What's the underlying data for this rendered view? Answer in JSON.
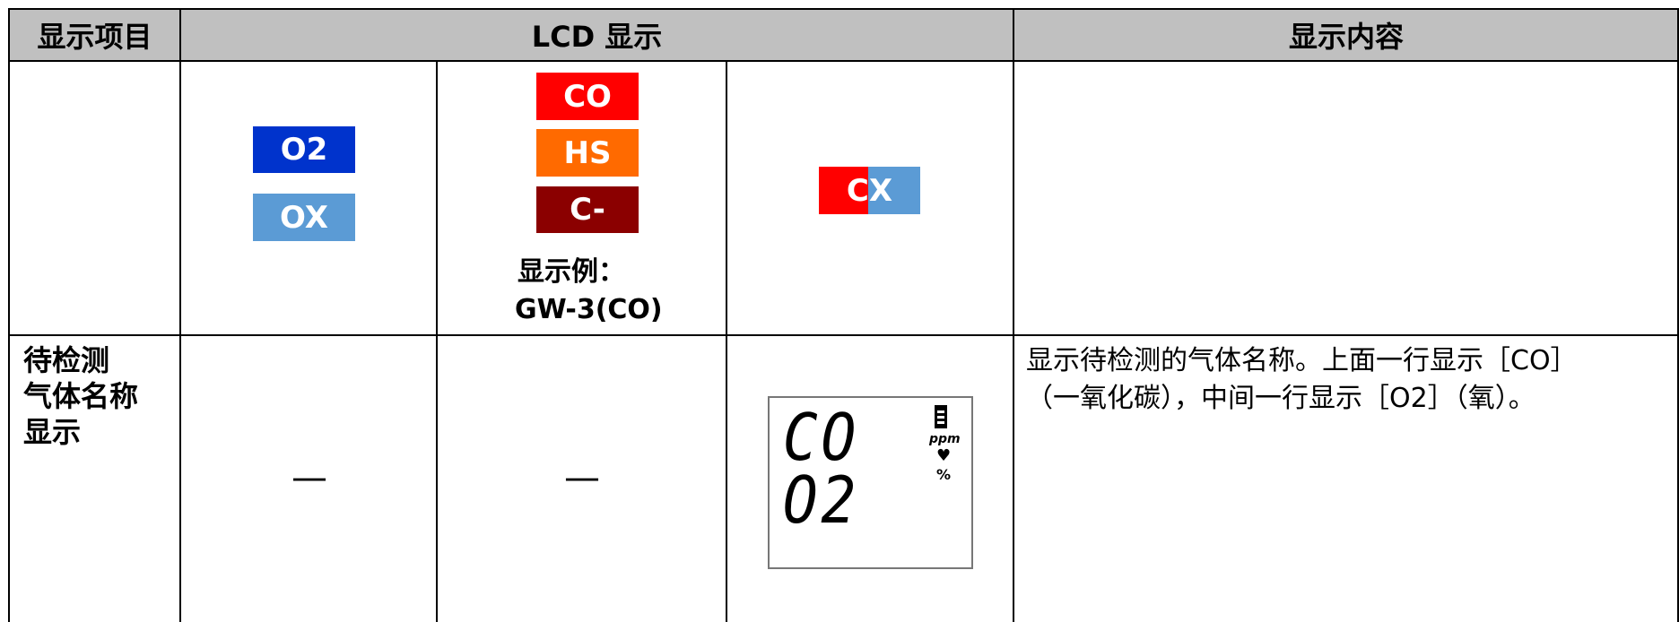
{
  "table": {
    "header": [
      "显示项目",
      "LCD 显示",
      "显示内容"
    ],
    "rows": [
      {
        "item": [],
        "lcd_col1": [
          "O2",
          "OX"
        ],
        "lcd_col2": [
          "CO",
          "HS",
          "C-"
        ],
        "lcd_col2_note": [
          "显示例：",
          "GW-3(CO)"
        ],
        "lcd_col3": "CX",
        "content": []
      },
      {
        "item": [
          "待检测",
          "气体名称",
          "显示"
        ],
        "lcd_col1": "—",
        "lcd_col2": "—",
        "lcd_col3": {
          "line1": "CO",
          "line2": "O2",
          "unit1": "ppm",
          "unit2": "%"
        },
        "content": [
          "显示待检测的气体名称。上面一行显示［CO］",
          "（一氧化碳），中间一行显示［O2］（氧）。"
        ]
      }
    ]
  }
}
